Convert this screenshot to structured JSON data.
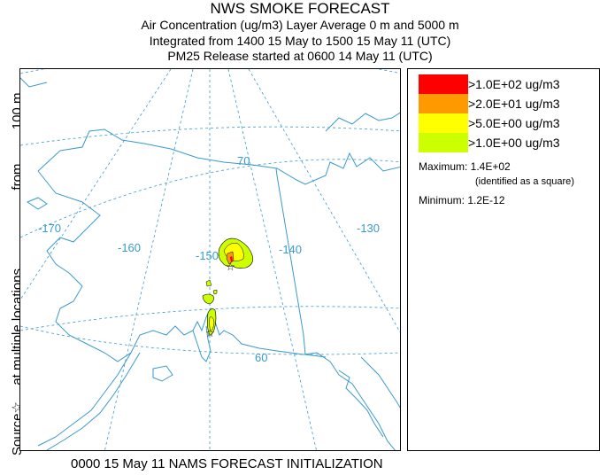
{
  "header": {
    "title": "NWS SMOKE FORECAST",
    "line1": "Air Concentration (ug/m3) Layer Average    0 m and  5000 m",
    "line2": "Integrated from 1400 15 May to 1500 15 May 11 (UTC)",
    "line3": "PM25 Release started at 0600 14 May 11 (UTC)"
  },
  "side_label": {
    "source": "Source☆",
    "at_multiple": "at multiple locations",
    "from": "from",
    "height": "100 m"
  },
  "footer": "0000 15 May 11 NAMS FORECAST INITIALIZATION",
  "legend": {
    "items": [
      {
        "label": ">1.0E+02 ug/m3",
        "color": "#ff0000"
      },
      {
        "label": ">2.0E+01 ug/m3",
        "color": "#ff9900"
      },
      {
        "label": ">5.0E+00 ug/m3",
        "color": "#ffff00"
      },
      {
        "label": ">1.0E+00 ug/m3",
        "color": "#ccff00"
      }
    ],
    "maximum": "Maximum: 1.4E+02",
    "max_note": "(identified as a square)",
    "minimum": "Minimum: 1.2E-12"
  },
  "map": {
    "grid_labels": {
      "lon_170": "-170",
      "lon_160": "-160",
      "lon_150": "-150",
      "lon_140": "-140",
      "lon_130": "-130",
      "lat_70": "70",
      "lat_60": "60"
    },
    "colors": {
      "coast": "#3a9acb",
      "grid": "#3a9acb"
    }
  }
}
